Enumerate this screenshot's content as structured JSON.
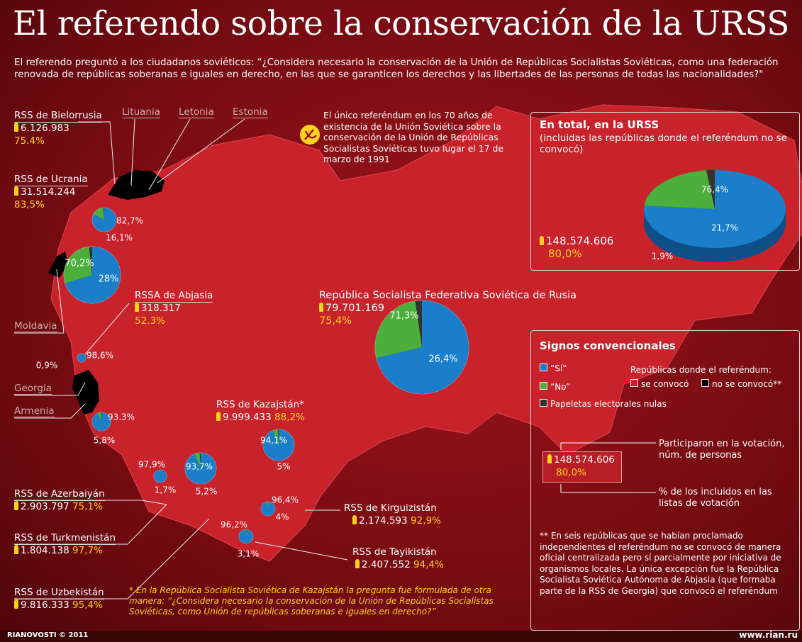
{
  "title": "El referendo sobre la conservación de la URSS",
  "intro": "El referendo preguntó a los ciudadanos soviéticos: “¿Considera necesario la conservación de la Unión de Repúblicas Socialistas Soviéticas, como una federación renovada de repúblicas soberanas e iguales en derecho, en las que se garanticen los derechos y las libertades de las personas de todas las nacionalidades?\"",
  "note": "El único referéndum en los 70 años de existencia de la Unión Soviética sobre la conservación de la Unión de Repúblicas Socialistas Soviéticas tuvo lugar el 17 de marzo de 1991",
  "neighbors": [
    "Lituania",
    "Letonia",
    "Estonia",
    "Moldavia",
    "Georgia",
    "Armenia"
  ],
  "republics": [
    {
      "name": "RSS de Bielorrusia",
      "voters": "6.126.983",
      "percent": "75.4%"
    },
    {
      "name": "RSS de Ucrania",
      "voters": "31.514.244",
      "percent": "83,5%"
    },
    {
      "name": "RSSA de Abjasia",
      "voters": "318.317",
      "percent": "52.3%"
    },
    {
      "name": "República Socialista Federativa Soviética de Rusia",
      "voters": "79.701.169",
      "percent": "75,4%"
    },
    {
      "name": "RSS de Kazajstán*",
      "voters": "9.999.433",
      "percent": "88,2%"
    },
    {
      "name": "RSS de Azerbaiyán",
      "voters": "2.903.797",
      "percent": "75,1%"
    },
    {
      "name": "RSS de Turkmenistán",
      "voters": "1.804.138",
      "percent": "97,7%"
    },
    {
      "name": "RSS de Uzbekistán",
      "voters": "9.816.333",
      "percent": "95,4%"
    },
    {
      "name": "RSS de Kirguizistán",
      "voters": "2.174.593",
      "percent": "92,9%"
    },
    {
      "name": "RSS de Tayikistán",
      "voters": "2.407.552",
      "percent": "94,4%"
    }
  ],
  "pies": [
    {
      "slices": [
        {
          "value": 82.7,
          "label": "82,7%"
        },
        {
          "value": 16.1,
          "label": "16,1%"
        }
      ]
    },
    {
      "slices": [
        {
          "value": 70.2,
          "label": "70,2%"
        },
        {
          "value": 28,
          "label": "28%"
        }
      ]
    },
    {
      "slices": [
        {
          "value": 98.6,
          "label": "98,6%"
        },
        {
          "value": 0.9,
          "label": "0,9%"
        }
      ]
    },
    {
      "slices": [
        {
          "value": 71.3,
          "label": "71,3%"
        },
        {
          "value": 26.4,
          "label": "26,4%"
        }
      ]
    },
    {
      "slices": [
        {
          "value": 93.3,
          "label": "93.3%"
        },
        {
          "value": 5.8,
          "label": "5,8%"
        }
      ]
    },
    {
      "slices": [
        {
          "value": 94.1,
          "label": "94,1%"
        },
        {
          "value": 5,
          "label": "5%"
        }
      ]
    },
    {
      "slices": [
        {
          "value": 97.9,
          "label": "97,9%"
        },
        {
          "value": 1.7,
          "label": "1,7%"
        }
      ]
    },
    {
      "slices": [
        {
          "value": 93.7,
          "label": "93,7%"
        },
        {
          "value": 5.2,
          "label": "5,2%"
        }
      ]
    },
    {
      "slices": [
        {
          "value": 96.4,
          "label": "96,4%"
        },
        {
          "value": 4,
          "label": "4%"
        }
      ]
    },
    {
      "slices": [
        {
          "value": 96.2,
          "label": "96,2%"
        },
        {
          "value": 3.1,
          "label": "3,1%"
        }
      ]
    }
  ],
  "total": {
    "title": "En total, en la URSS",
    "subtitle": "(incluidas las repúblicas donde el referéndum no se convocó)",
    "voters": "148.574.606",
    "percent": "80,0%",
    "slices": [
      {
        "value": 76.4,
        "label": "76,4%"
      },
      {
        "value": 21.7,
        "label": "21,7%"
      },
      {
        "value": 1.9,
        "label": "1,9%"
      }
    ]
  },
  "legend": {
    "title": "Signos convencionales",
    "yes": "“Sí”",
    "no": "“No”",
    "null": "Papeletas electorales nulas",
    "held_title": "Repúblicas donde el referéndum:",
    "held": "se convocó",
    "not_held": "no se convocó**",
    "example_voters": "148.574.606",
    "example_percent": "80,0%",
    "voters_explained": "Participaron en la votación, núm. de personas",
    "percent_explained": "% de los incluidos en las listas de votación"
  },
  "footnotes": {
    "double": "** En seis repúblicas que se habían proclamado independientes el referéndum no se convocó de manera oficial centralizada pero sí parcialmente por iniciativa de organismos locales. La única excepción fue la República Socialista Soviética Autónoma de Abjasia (que formaba parte de la RSS de Georgia) que convocó el referéndum",
    "single": "* En la República Socialista Soviética de Kazajstán la pregunta fue formulada de otra manera: “¿Considera necesario la conservación de la Unión de Repúblicas Socialistas Soviéticas, como Unión de repúblicas soberanas e iguales en derecho?”"
  },
  "footer": {
    "source": "RIANOVOSTI © 2011",
    "url": "www.rian.ru"
  }
}
